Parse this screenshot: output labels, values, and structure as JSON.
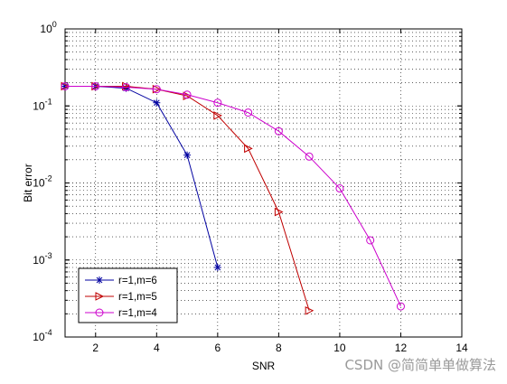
{
  "chart_data": {
    "type": "line",
    "title": "",
    "xlabel": "SNR",
    "ylabel": "Bit error",
    "xlim": [
      1,
      14
    ],
    "ylim": [
      0.0001,
      1
    ],
    "yscale": "log",
    "grid": true,
    "legend_position": "bottom-left",
    "x_ticks": [
      2,
      4,
      6,
      8,
      10,
      12,
      14
    ],
    "y_tick_labels": [
      {
        "base": "10",
        "exp": "0",
        "value": 1
      },
      {
        "base": "10",
        "exp": "-1",
        "value": 0.1
      },
      {
        "base": "10",
        "exp": "-2",
        "value": 0.01
      },
      {
        "base": "10",
        "exp": "-3",
        "value": 0.001
      },
      {
        "base": "10",
        "exp": "-4",
        "value": 0.0001
      }
    ],
    "series": [
      {
        "name": "r=1,m=6",
        "color": "#0000a0",
        "marker": "star",
        "x": [
          1,
          2,
          3,
          4,
          5,
          6
        ],
        "y": [
          0.18,
          0.18,
          0.17,
          0.11,
          0.023,
          0.0008
        ]
      },
      {
        "name": "r=1,m=5",
        "color": "#c00000",
        "marker": "triangle-right",
        "x": [
          1,
          2,
          3,
          4,
          5,
          6,
          7,
          8,
          9
        ],
        "y": [
          0.18,
          0.18,
          0.18,
          0.165,
          0.135,
          0.075,
          0.028,
          0.0042,
          0.00022
        ]
      },
      {
        "name": "r=1,m=4",
        "color": "#cc00cc",
        "marker": "circle",
        "x": [
          1,
          2,
          3,
          4,
          5,
          6,
          7,
          8,
          9,
          10,
          11,
          12
        ],
        "y": [
          0.18,
          0.18,
          0.175,
          0.165,
          0.14,
          0.11,
          0.082,
          0.047,
          0.022,
          0.0085,
          0.0018,
          0.00025
        ]
      }
    ]
  },
  "watermark": "CSDN @简简单单做算法"
}
